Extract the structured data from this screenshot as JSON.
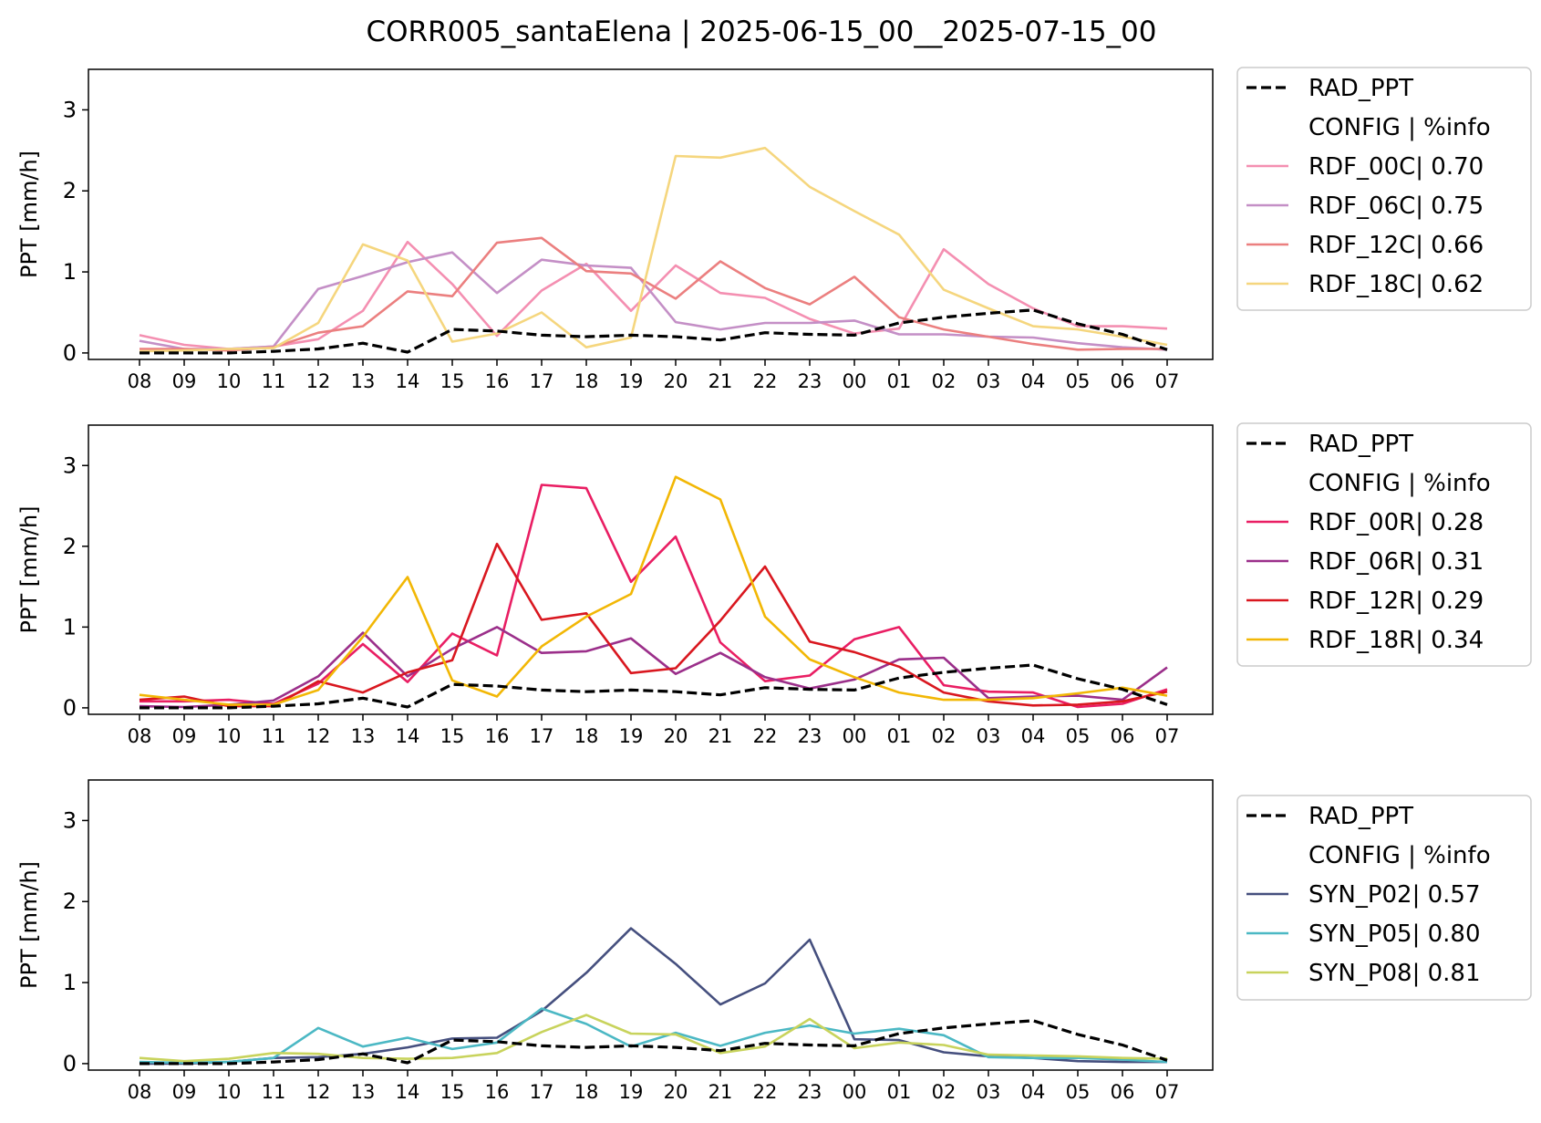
{
  "chart_data": [
    {
      "type": "line",
      "title": "",
      "suptitle": "CORR005_santaElena | 2025-06-15_00__2025-07-15_00",
      "xlabel": "",
      "ylabel": "PPT [mm/h]",
      "ylim": [
        -0.08,
        3.5
      ],
      "yticks": [
        0,
        1,
        2,
        3
      ],
      "categories": [
        "08",
        "09",
        "10",
        "11",
        "12",
        "13",
        "14",
        "15",
        "16",
        "17",
        "18",
        "19",
        "20",
        "21",
        "22",
        "23",
        "00",
        "01",
        "02",
        "03",
        "04",
        "05",
        "06",
        "07"
      ],
      "legend": {
        "placement": "outside-right",
        "header": "CONFIG  | %info"
      },
      "series": [
        {
          "name": "RAD_PPT",
          "color": "#000000",
          "dashed": true,
          "values": [
            0.0,
            0.0,
            0.0,
            0.02,
            0.05,
            0.12,
            0.01,
            0.29,
            0.27,
            0.22,
            0.2,
            0.22,
            0.2,
            0.16,
            0.25,
            0.23,
            0.22,
            0.37,
            0.44,
            0.49,
            0.53,
            0.36,
            0.23,
            0.04
          ]
        },
        {
          "name": "RDF_00C| 0.70",
          "color": "#f48fb1",
          "values": [
            0.22,
            0.1,
            0.05,
            0.08,
            0.17,
            0.52,
            1.37,
            0.85,
            0.21,
            0.77,
            1.1,
            0.52,
            1.08,
            0.74,
            0.68,
            0.42,
            0.24,
            0.3,
            1.28,
            0.85,
            0.55,
            0.33,
            0.33,
            0.3
          ]
        },
        {
          "name": "RDF_06C| 0.75",
          "color": "#c48fc6",
          "values": [
            0.15,
            0.05,
            0.05,
            0.08,
            0.79,
            0.95,
            1.12,
            1.24,
            0.74,
            1.15,
            1.08,
            1.05,
            0.38,
            0.29,
            0.37,
            0.37,
            0.4,
            0.23,
            0.23,
            0.2,
            0.19,
            0.12,
            0.07,
            0.04
          ]
        },
        {
          "name": "RDF_12C| 0.66",
          "color": "#eb7f7f",
          "values": [
            0.05,
            0.05,
            0.03,
            0.07,
            0.25,
            0.33,
            0.76,
            0.7,
            1.36,
            1.42,
            1.01,
            0.98,
            0.67,
            1.13,
            0.8,
            0.6,
            0.94,
            0.44,
            0.29,
            0.2,
            0.11,
            0.04,
            0.05,
            0.05
          ]
        },
        {
          "name": "RDF_18C| 0.62",
          "color": "#f5d67e",
          "values": [
            0.02,
            0.03,
            0.05,
            0.06,
            0.37,
            1.34,
            1.14,
            0.14,
            0.24,
            0.5,
            0.07,
            0.19,
            2.43,
            2.41,
            2.53,
            2.05,
            1.75,
            1.46,
            0.78,
            0.55,
            0.33,
            0.29,
            0.2,
            0.1
          ]
        }
      ]
    },
    {
      "type": "line",
      "title": "",
      "xlabel": "",
      "ylabel": "PPT [mm/h]",
      "ylim": [
        -0.08,
        3.5
      ],
      "yticks": [
        0,
        1,
        2,
        3
      ],
      "categories": [
        "08",
        "09",
        "10",
        "11",
        "12",
        "13",
        "14",
        "15",
        "16",
        "17",
        "18",
        "19",
        "20",
        "21",
        "22",
        "23",
        "00",
        "01",
        "02",
        "03",
        "04",
        "05",
        "06",
        "07"
      ],
      "legend": {
        "placement": "outside-right",
        "header": "CONFIG  | %info"
      },
      "series": [
        {
          "name": "RAD_PPT",
          "color": "#000000",
          "dashed": true,
          "values": [
            0.0,
            0.0,
            0.0,
            0.02,
            0.05,
            0.12,
            0.01,
            0.29,
            0.27,
            0.22,
            0.2,
            0.22,
            0.2,
            0.16,
            0.25,
            0.23,
            0.22,
            0.37,
            0.44,
            0.49,
            0.53,
            0.36,
            0.23,
            0.04
          ]
        },
        {
          "name": "RDF_00R| 0.28",
          "color": "#e91e63",
          "values": [
            0.08,
            0.08,
            0.1,
            0.05,
            0.3,
            0.79,
            0.32,
            0.92,
            0.65,
            2.76,
            2.72,
            1.56,
            2.12,
            0.81,
            0.33,
            0.4,
            0.85,
            1.0,
            0.28,
            0.2,
            0.19,
            0.01,
            0.05,
            0.23
          ]
        },
        {
          "name": "RDF_06R| 0.31",
          "color": "#9b2f8a",
          "values": [
            0.02,
            0.01,
            0.04,
            0.09,
            0.39,
            0.93,
            0.39,
            0.73,
            1.0,
            0.68,
            0.7,
            0.86,
            0.42,
            0.68,
            0.38,
            0.24,
            0.35,
            0.6,
            0.62,
            0.12,
            0.14,
            0.15,
            0.1,
            0.5
          ]
        },
        {
          "name": "RDF_12R| 0.29",
          "color": "#d9171f",
          "values": [
            0.1,
            0.14,
            0.02,
            0.02,
            0.33,
            0.19,
            0.44,
            0.59,
            2.03,
            1.09,
            1.17,
            0.43,
            0.49,
            1.08,
            1.75,
            0.82,
            0.69,
            0.51,
            0.19,
            0.08,
            0.03,
            0.04,
            0.08,
            0.2
          ]
        },
        {
          "name": "RDF_18R| 0.34",
          "color": "#f2b705",
          "values": [
            0.16,
            0.1,
            0.04,
            0.04,
            0.22,
            0.88,
            1.62,
            0.34,
            0.14,
            0.76,
            1.13,
            1.41,
            2.86,
            2.58,
            1.13,
            0.6,
            0.38,
            0.19,
            0.1,
            0.1,
            0.12,
            0.18,
            0.25,
            0.15
          ]
        }
      ]
    },
    {
      "type": "line",
      "title": "",
      "xlabel": "",
      "ylabel": "PPT [mm/h]",
      "ylim": [
        -0.08,
        3.5
      ],
      "yticks": [
        0,
        1,
        2,
        3
      ],
      "categories": [
        "08",
        "09",
        "10",
        "11",
        "12",
        "13",
        "14",
        "15",
        "16",
        "17",
        "18",
        "19",
        "20",
        "21",
        "22",
        "23",
        "00",
        "01",
        "02",
        "03",
        "04",
        "05",
        "06",
        "07"
      ],
      "legend": {
        "placement": "outside-right",
        "header": "CONFIG  | %info"
      },
      "series": [
        {
          "name": "RAD_PPT",
          "color": "#000000",
          "dashed": true,
          "values": [
            0.0,
            0.0,
            0.0,
            0.02,
            0.05,
            0.12,
            0.01,
            0.29,
            0.27,
            0.22,
            0.2,
            0.22,
            0.2,
            0.16,
            0.25,
            0.23,
            0.22,
            0.37,
            0.44,
            0.49,
            0.53,
            0.36,
            0.23,
            0.04
          ]
        },
        {
          "name": "SYN_P02| 0.57",
          "color": "#454f7e",
          "values": [
            0.0,
            0.0,
            0.02,
            0.07,
            0.08,
            0.12,
            0.2,
            0.31,
            0.32,
            0.65,
            1.12,
            1.67,
            1.23,
            0.73,
            0.99,
            1.53,
            0.3,
            0.29,
            0.14,
            0.09,
            0.07,
            0.03,
            0.02,
            0.02
          ]
        },
        {
          "name": "SYN_P05| 0.80",
          "color": "#4bb8c4",
          "values": [
            0.02,
            0.01,
            0.02,
            0.07,
            0.44,
            0.21,
            0.32,
            0.18,
            0.26,
            0.68,
            0.49,
            0.21,
            0.38,
            0.22,
            0.38,
            0.47,
            0.37,
            0.43,
            0.35,
            0.08,
            0.07,
            0.07,
            0.05,
            0.02
          ]
        },
        {
          "name": "SYN_P08| 0.81",
          "color": "#c8d35c",
          "values": [
            0.07,
            0.03,
            0.06,
            0.13,
            0.12,
            0.07,
            0.06,
            0.07,
            0.13,
            0.39,
            0.6,
            0.37,
            0.36,
            0.13,
            0.21,
            0.55,
            0.19,
            0.26,
            0.23,
            0.11,
            0.1,
            0.09,
            0.07,
            0.06
          ]
        }
      ]
    }
  ]
}
